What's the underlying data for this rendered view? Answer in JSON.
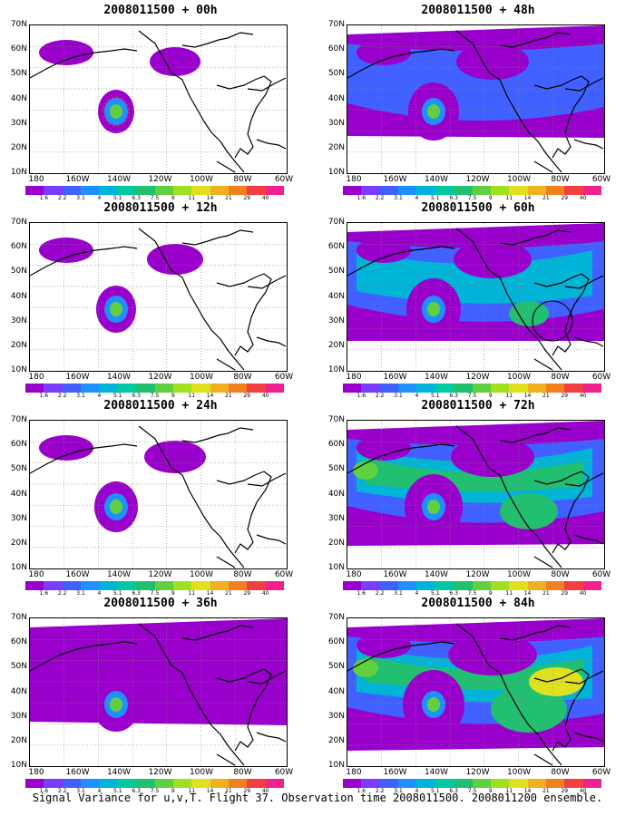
{
  "panels": [
    {
      "title": "2008011500 + 00h",
      "level": 0
    },
    {
      "title": "2008011500 + 48h",
      "level": 4
    },
    {
      "title": "2008011500 + 12h",
      "level": 1
    },
    {
      "title": "2008011500 + 60h",
      "level": 5
    },
    {
      "title": "2008011500 + 24h",
      "level": 2
    },
    {
      "title": "2008011500 + 72h",
      "level": 6
    },
    {
      "title": "2008011500 + 36h",
      "level": 3
    },
    {
      "title": "2008011500 + 84h",
      "level": 7
    }
  ],
  "y_ticks": [
    "70N",
    "60N",
    "50N",
    "40N",
    "30N",
    "20N",
    "10N"
  ],
  "x_ticks": [
    "180",
    "160W",
    "140W",
    "120W",
    "100W",
    "80W",
    "60W"
  ],
  "colorbar": {
    "colors": [
      "#9900cc",
      "#7a3cff",
      "#4060ff",
      "#1e90ff",
      "#00b4d8",
      "#00c8a0",
      "#20c070",
      "#60d040",
      "#a0e020",
      "#e0e020",
      "#f0b020",
      "#f08020",
      "#f04040",
      "#f0208c"
    ],
    "labels": [
      "1.6",
      "2.2",
      "3.1",
      "4",
      "5.1",
      "6.3",
      "7.5",
      "9",
      "11",
      "14",
      "21",
      "29",
      "40"
    ]
  },
  "footer": "Signal Variance for u,v,T. Flight 37. Observation time 2008011500. 2008011200 ensemble."
}
